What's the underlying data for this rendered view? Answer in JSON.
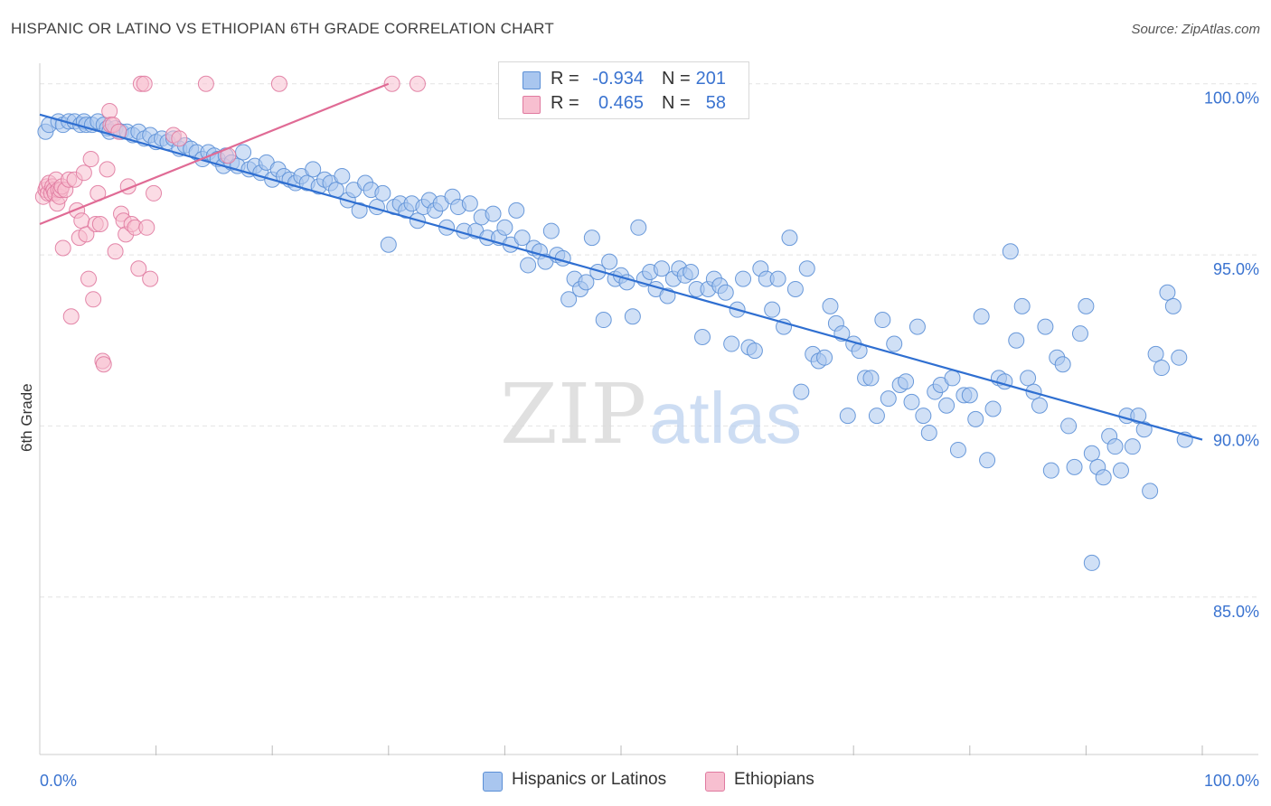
{
  "title": "HISPANIC OR LATINO VS ETHIOPIAN 6TH GRADE CORRELATION CHART",
  "source": "Source: ZipAtlas.com",
  "watermark": {
    "part1": "ZIP",
    "part2": "atlas"
  },
  "legend": {
    "r_label": "R =",
    "n_label": "N =",
    "rows": [
      {
        "series": "Hispanics or Latinos",
        "r": "-0.934",
        "n": "201",
        "fill": "#a9c6ef",
        "stroke": "#5b8fd6"
      },
      {
        "series": "Ethiopians",
        "r": "0.465",
        "n": "58",
        "fill": "#f7bfd0",
        "stroke": "#e07aa0"
      }
    ]
  },
  "chart_data": {
    "type": "scatter",
    "title": "HISPANIC OR LATINO VS ETHIOPIAN 6TH GRADE CORRELATION CHART",
    "xlabel": "",
    "ylabel": "6th Grade",
    "xlim": [
      0,
      100
    ],
    "ylim": [
      80.4,
      100.6
    ],
    "x_tick_labels": [
      "0.0%",
      "100.0%"
    ],
    "y_ticks": [
      {
        "value": 100,
        "label": "100.0%"
      },
      {
        "value": 95,
        "label": "95.0%"
      },
      {
        "value": 90,
        "label": "90.0%"
      },
      {
        "value": 85,
        "label": "85.0%"
      }
    ],
    "grid": true,
    "series": [
      {
        "name": "Hispanics or Latinos",
        "color": "#5b8fd6",
        "fill": "#a9c6ef",
        "trend": {
          "x": [
            0,
            100
          ],
          "y": [
            99.1,
            89.6
          ]
        },
        "points": [
          [
            0.5,
            98.6
          ],
          [
            0.8,
            98.8
          ],
          [
            1.6,
            98.9
          ],
          [
            2.0,
            98.8
          ],
          [
            2.5,
            98.9
          ],
          [
            3.0,
            98.9
          ],
          [
            3.5,
            98.8
          ],
          [
            3.8,
            98.9
          ],
          [
            4.0,
            98.8
          ],
          [
            4.5,
            98.8
          ],
          [
            5.0,
            98.9
          ],
          [
            5.5,
            98.8
          ],
          [
            5.8,
            98.7
          ],
          [
            6.0,
            98.6
          ],
          [
            6.5,
            98.7
          ],
          [
            7.0,
            98.6
          ],
          [
            7.5,
            98.6
          ],
          [
            8.0,
            98.5
          ],
          [
            8.5,
            98.6
          ],
          [
            9.0,
            98.4
          ],
          [
            9.5,
            98.5
          ],
          [
            10.0,
            98.3
          ],
          [
            10.5,
            98.4
          ],
          [
            11.0,
            98.3
          ],
          [
            11.5,
            98.4
          ],
          [
            12.0,
            98.1
          ],
          [
            12.5,
            98.2
          ],
          [
            13.0,
            98.1
          ],
          [
            13.5,
            98.0
          ],
          [
            14.0,
            97.8
          ],
          [
            14.5,
            98.0
          ],
          [
            15.0,
            97.9
          ],
          [
            15.3,
            97.8
          ],
          [
            15.8,
            97.6
          ],
          [
            16.0,
            97.9
          ],
          [
            16.5,
            97.7
          ],
          [
            17.0,
            97.6
          ],
          [
            17.5,
            98.0
          ],
          [
            18.0,
            97.5
          ],
          [
            18.5,
            97.6
          ],
          [
            19.0,
            97.4
          ],
          [
            19.5,
            97.7
          ],
          [
            20.0,
            97.2
          ],
          [
            20.5,
            97.5
          ],
          [
            21.0,
            97.3
          ],
          [
            21.5,
            97.2
          ],
          [
            22.0,
            97.1
          ],
          [
            22.5,
            97.3
          ],
          [
            23.0,
            97.1
          ],
          [
            23.5,
            97.5
          ],
          [
            24.0,
            97.0
          ],
          [
            24.5,
            97.2
          ],
          [
            25.0,
            97.1
          ],
          [
            25.5,
            96.9
          ],
          [
            26.0,
            97.3
          ],
          [
            26.5,
            96.6
          ],
          [
            27.0,
            96.9
          ],
          [
            27.5,
            96.3
          ],
          [
            28.0,
            97.1
          ],
          [
            28.5,
            96.9
          ],
          [
            29.0,
            96.4
          ],
          [
            29.5,
            96.8
          ],
          [
            30.0,
            95.3
          ],
          [
            30.5,
            96.4
          ],
          [
            31.0,
            96.5
          ],
          [
            31.5,
            96.3
          ],
          [
            32.0,
            96.5
          ],
          [
            32.5,
            96.0
          ],
          [
            33.0,
            96.4
          ],
          [
            33.5,
            96.6
          ],
          [
            34.0,
            96.3
          ],
          [
            35.0,
            95.8
          ],
          [
            34.5,
            96.5
          ],
          [
            35.5,
            96.7
          ],
          [
            36.0,
            96.4
          ],
          [
            36.5,
            95.7
          ],
          [
            37.0,
            96.5
          ],
          [
            37.5,
            95.7
          ],
          [
            38.0,
            96.1
          ],
          [
            38.5,
            95.5
          ],
          [
            39.0,
            96.2
          ],
          [
            39.5,
            95.5
          ],
          [
            40.0,
            95.8
          ],
          [
            40.5,
            95.3
          ],
          [
            41.0,
            96.3
          ],
          [
            41.5,
            95.5
          ],
          [
            42.0,
            94.7
          ],
          [
            42.5,
            95.2
          ],
          [
            43.0,
            95.1
          ],
          [
            43.5,
            94.8
          ],
          [
            44.0,
            95.7
          ],
          [
            44.5,
            95.0
          ],
          [
            45.0,
            94.9
          ],
          [
            45.5,
            93.7
          ],
          [
            46.0,
            94.3
          ],
          [
            46.5,
            94.0
          ],
          [
            47.0,
            94.2
          ],
          [
            47.5,
            95.5
          ],
          [
            48.0,
            94.5
          ],
          [
            48.5,
            93.1
          ],
          [
            49.0,
            94.8
          ],
          [
            49.5,
            94.3
          ],
          [
            50.0,
            94.4
          ],
          [
            50.5,
            94.2
          ],
          [
            51.0,
            93.2
          ],
          [
            51.5,
            95.8
          ],
          [
            52.0,
            94.3
          ],
          [
            52.5,
            94.5
          ],
          [
            53.0,
            94.0
          ],
          [
            53.5,
            94.6
          ],
          [
            54.0,
            93.8
          ],
          [
            54.5,
            94.3
          ],
          [
            55.0,
            94.6
          ],
          [
            55.5,
            94.4
          ],
          [
            56.0,
            94.5
          ],
          [
            56.5,
            94.0
          ],
          [
            57.0,
            92.6
          ],
          [
            57.5,
            94.0
          ],
          [
            58.0,
            94.3
          ],
          [
            58.5,
            94.1
          ],
          [
            59.0,
            93.9
          ],
          [
            59.5,
            92.4
          ],
          [
            60.0,
            93.4
          ],
          [
            60.5,
            94.3
          ],
          [
            61.0,
            92.3
          ],
          [
            61.5,
            92.2
          ],
          [
            62.0,
            94.6
          ],
          [
            62.5,
            94.3
          ],
          [
            63.0,
            93.4
          ],
          [
            63.5,
            94.3
          ],
          [
            64.0,
            92.9
          ],
          [
            64.5,
            95.5
          ],
          [
            65.0,
            94.0
          ],
          [
            65.5,
            91.0
          ],
          [
            66.0,
            94.6
          ],
          [
            66.5,
            92.1
          ],
          [
            67.0,
            91.9
          ],
          [
            67.5,
            92.0
          ],
          [
            68.0,
            93.5
          ],
          [
            68.5,
            93.0
          ],
          [
            69.0,
            92.7
          ],
          [
            69.5,
            90.3
          ],
          [
            70.0,
            92.4
          ],
          [
            70.5,
            92.2
          ],
          [
            71.0,
            91.4
          ],
          [
            71.5,
            91.4
          ],
          [
            72.0,
            90.3
          ],
          [
            72.5,
            93.1
          ],
          [
            73.0,
            90.8
          ],
          [
            73.5,
            92.4
          ],
          [
            74.0,
            91.2
          ],
          [
            74.5,
            91.3
          ],
          [
            75.0,
            90.7
          ],
          [
            75.5,
            92.9
          ],
          [
            76.0,
            90.3
          ],
          [
            76.5,
            89.8
          ],
          [
            77.0,
            91.0
          ],
          [
            77.5,
            91.2
          ],
          [
            78.0,
            90.6
          ],
          [
            78.5,
            91.4
          ],
          [
            79.0,
            89.3
          ],
          [
            79.5,
            90.9
          ],
          [
            80.0,
            90.9
          ],
          [
            80.5,
            90.2
          ],
          [
            81.0,
            93.2
          ],
          [
            81.5,
            89.0
          ],
          [
            82.0,
            90.5
          ],
          [
            82.5,
            91.4
          ],
          [
            83.0,
            91.3
          ],
          [
            83.5,
            95.1
          ],
          [
            84.0,
            92.5
          ],
          [
            84.5,
            93.5
          ],
          [
            85.0,
            91.4
          ],
          [
            85.5,
            91.0
          ],
          [
            86.0,
            90.6
          ],
          [
            86.5,
            92.9
          ],
          [
            87.0,
            88.7
          ],
          [
            87.5,
            92.0
          ],
          [
            88.0,
            91.8
          ],
          [
            88.5,
            90.0
          ],
          [
            89.0,
            88.8
          ],
          [
            89.5,
            92.7
          ],
          [
            90.0,
            93.5
          ],
          [
            90.5,
            89.2
          ],
          [
            91.0,
            88.8
          ],
          [
            91.5,
            88.5
          ],
          [
            92.0,
            89.7
          ],
          [
            92.5,
            89.4
          ],
          [
            93.0,
            88.7
          ],
          [
            93.5,
            90.3
          ],
          [
            94.0,
            89.4
          ],
          [
            94.5,
            90.3
          ],
          [
            95.0,
            89.9
          ],
          [
            95.5,
            88.1
          ],
          [
            96.0,
            92.1
          ],
          [
            96.5,
            91.7
          ],
          [
            97.0,
            93.9
          ],
          [
            97.5,
            93.5
          ],
          [
            98.0,
            92.0
          ],
          [
            98.5,
            89.6
          ],
          [
            90.5,
            86.0
          ]
        ]
      },
      {
        "name": "Ethiopians",
        "color": "#e07aa0",
        "fill": "#f7bfd0",
        "trend": {
          "x": [
            0,
            30
          ],
          "y": [
            95.9,
            100.0
          ]
        },
        "points": [
          [
            0.3,
            96.7
          ],
          [
            0.5,
            96.9
          ],
          [
            0.6,
            97.0
          ],
          [
            0.7,
            96.8
          ],
          [
            0.8,
            97.1
          ],
          [
            1.0,
            96.8
          ],
          [
            1.1,
            97.0
          ],
          [
            1.2,
            96.9
          ],
          [
            1.3,
            96.8
          ],
          [
            1.4,
            97.2
          ],
          [
            1.5,
            96.5
          ],
          [
            1.6,
            96.9
          ],
          [
            1.7,
            96.7
          ],
          [
            1.8,
            96.9
          ],
          [
            1.9,
            97.0
          ],
          [
            2.0,
            95.2
          ],
          [
            2.2,
            96.9
          ],
          [
            2.5,
            97.2
          ],
          [
            2.7,
            93.2
          ],
          [
            3.0,
            97.2
          ],
          [
            3.2,
            96.3
          ],
          [
            3.4,
            95.5
          ],
          [
            3.6,
            96.0
          ],
          [
            3.8,
            97.4
          ],
          [
            4.0,
            95.6
          ],
          [
            4.2,
            94.3
          ],
          [
            4.4,
            97.8
          ],
          [
            4.6,
            93.7
          ],
          [
            4.8,
            95.9
          ],
          [
            5.0,
            96.8
          ],
          [
            5.2,
            95.9
          ],
          [
            5.4,
            91.9
          ],
          [
            5.5,
            91.8
          ],
          [
            5.8,
            97.5
          ],
          [
            6.0,
            99.2
          ],
          [
            6.1,
            98.8
          ],
          [
            6.3,
            98.8
          ],
          [
            6.5,
            95.1
          ],
          [
            6.8,
            98.6
          ],
          [
            7.0,
            96.2
          ],
          [
            7.2,
            96.0
          ],
          [
            7.4,
            95.6
          ],
          [
            7.6,
            97.0
          ],
          [
            7.9,
            95.9
          ],
          [
            8.2,
            95.8
          ],
          [
            8.5,
            94.6
          ],
          [
            8.7,
            100.0
          ],
          [
            9.0,
            100.0
          ],
          [
            9.2,
            95.8
          ],
          [
            9.5,
            94.3
          ],
          [
            9.8,
            96.8
          ],
          [
            11.5,
            98.5
          ],
          [
            12.0,
            98.4
          ],
          [
            14.3,
            100.0
          ],
          [
            16.2,
            97.9
          ],
          [
            20.6,
            100.0
          ],
          [
            30.3,
            100.0
          ],
          [
            32.5,
            100.0
          ]
        ]
      }
    ]
  }
}
